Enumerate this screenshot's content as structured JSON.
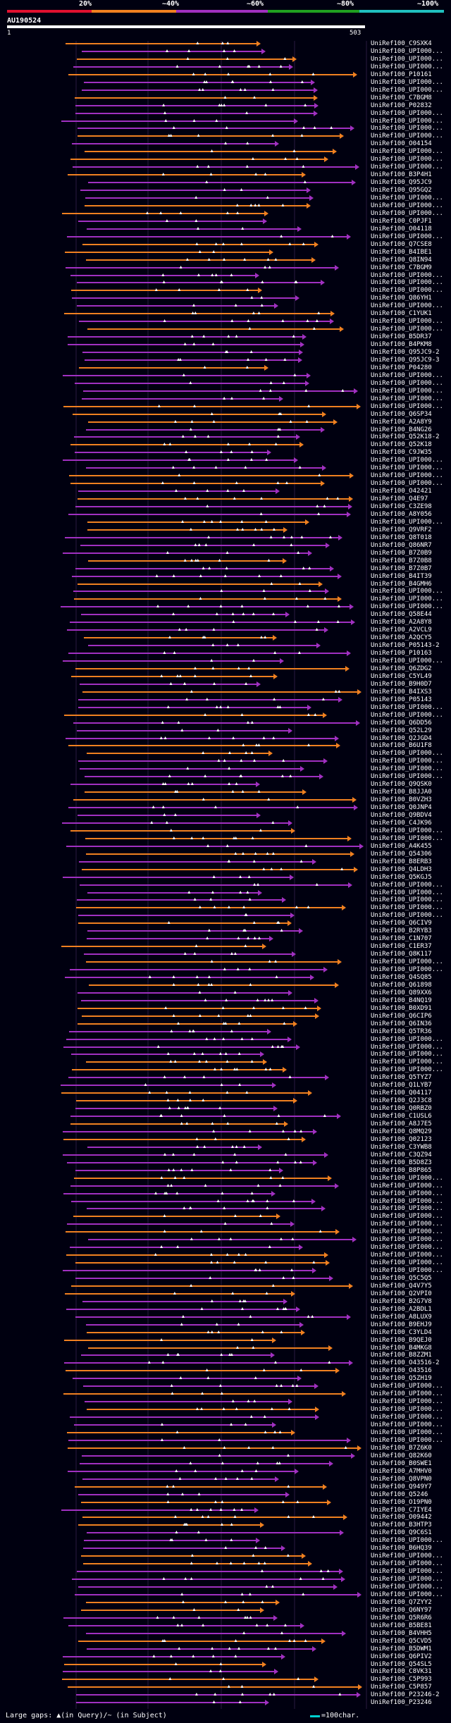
{
  "query": {
    "id": "AU190524",
    "start_label": "1",
    "end_label": "503"
  },
  "identity_scale": [
    {
      "label": "20%",
      "color": "#e0102f"
    },
    {
      "label": "~40%",
      "color": "#f08020"
    },
    {
      "label": "~60%",
      "color": "#a030c0"
    },
    {
      "label": "~80%",
      "color": "#20a020"
    },
    {
      "label": "~100%",
      "color": "#20c0c0"
    }
  ],
  "footer": {
    "gaps_note": "Large gaps: ▲(in Query)/~ (in Subject)",
    "legend": "=100char."
  },
  "hits": [
    "UniRef100_C9SXK4",
    "UniRef100_UPI000...",
    "UniRef100_UPI000...",
    "UniRef100_UPI000...",
    "UniRef100_P10161",
    "UniRef100_UPI000...",
    "UniRef100_UPI000...",
    "UniRef100_C7BGM8",
    "UniRef100_P02832",
    "UniRef100_UPI000...",
    "UniRef100_UPI000...",
    "UniRef100_UPI000...",
    "UniRef100_UPI000...",
    "UniRef100_O04154",
    "UniRef100_UPI000...",
    "UniRef100_UPI000...",
    "UniRef100_UPI000...",
    "UniRef100_B3P4H1",
    "UniRef100_Q95JC9",
    "UniRef100_Q95GQ2",
    "UniRef100_UPI000...",
    "UniRef100_UPI000...",
    "UniRef100_UPI000...",
    "UniRef100_C0PJF1",
    "UniRef100_O04118",
    "UniRef100_UPI000...",
    "UniRef100_Q7CSE8",
    "UniRef100_B4IBE1",
    "UniRef100_Q8IN94",
    "UniRef100_C7BGM9",
    "UniRef100_UPI000...",
    "UniRef100_UPI000...",
    "UniRef100_UPI000...",
    "UniRef100_Q86YH1",
    "UniRef100_UPI000...",
    "UniRef100_C1YUK1",
    "UniRef100_UPI000...",
    "UniRef100_UPI000...",
    "UniRef100_B5DR37",
    "UniRef100_B4PKM8",
    "UniRef100_Q95JC9-2",
    "UniRef100_Q95JC9-3",
    "UniRef100_P04280",
    "UniRef100_UPI000...",
    "UniRef100_UPI000...",
    "UniRef100_UPI000...",
    "UniRef100_UPI000...",
    "UniRef100_UPI000...",
    "UniRef100_Q6SP34",
    "UniRef100_A2A8Y9",
    "UniRef100_B4NG26",
    "UniRef100_Q52K18-2",
    "UniRef100_Q52K18",
    "UniRef100_C9JW35",
    "UniRef100_UPI000...",
    "UniRef100_UPI000...",
    "UniRef100_UPI000...",
    "UniRef100_UPI000...",
    "UniRef100_O42421",
    "UniRef100_Q4E97",
    "UniRef100_C3ZE98",
    "UniRef100_A8Y056",
    "UniRef100_UPI000...",
    "UniRef100_Q9VRF2",
    "UniRef100_Q8T018",
    "UniRef100_Q86NR7",
    "UniRef100_B7Z0B9",
    "UniRef100_B7Z0B8",
    "UniRef100_B7Z0B7",
    "UniRef100_B4IT39",
    "UniRef100_B4GMH6",
    "UniRef100_UPI000...",
    "UniRef100_UPI000...",
    "UniRef100_UPI000...",
    "UniRef100_Q58E44",
    "UniRef100_A2A8Y8",
    "UniRef100_A2VCL9",
    "UniRef100_A2QCY5",
    "UniRef100_P05143-2",
    "UniRef100_P10163",
    "UniRef100_UPI000...",
    "UniRef100_Q6ZDG2",
    "UniRef100_C5YL49",
    "UniRef100_B9H0D7",
    "UniRef100_B4IXS3",
    "UniRef100_P05143",
    "UniRef100_UPI000...",
    "UniRef100_UPI000...",
    "UniRef100_Q6DD56",
    "UniRef100_Q52L29",
    "UniRef100_Q2JGD4",
    "UniRef100_B6U1F8",
    "UniRef100_UPI000...",
    "UniRef100_UPI000...",
    "UniRef100_UPI000...",
    "UniRef100_UPI000...",
    "UniRef100_Q9QSK0",
    "UniRef100_B8JJA0",
    "UniRef100_B0VZH3",
    "UniRef100_Q0JNP4",
    "UniRef100_Q9BDV4",
    "UniRef100_C4JK96",
    "UniRef100_UPI000...",
    "UniRef100_UPI000...",
    "UniRef100_A4K455",
    "UniRef100_Q54306",
    "UniRef100_B8ERB3",
    "UniRef100_Q4LDH3",
    "UniRef100_Q5KGJ5",
    "UniRef100_UPI000...",
    "UniRef100_UPI000...",
    "UniRef100_UPI000...",
    "UniRef100_UPI000...",
    "UniRef100_UPI000...",
    "UniRef100_Q6CIV9",
    "UniRef100_B2RYB3",
    "UniRef100_C1N707",
    "UniRef100_C1ER37",
    "UniRef100_Q8K117",
    "UniRef100_UPI000...",
    "UniRef100_UPI000...",
    "UniRef100_Q4SQ85",
    "UniRef100_Q61898",
    "UniRef100_Q89XX6",
    "UniRef100_B4NQ19",
    "UniRef100_B0XD91",
    "UniRef100_Q6CIP6",
    "UniRef100_Q6IN36",
    "UniRef100_Q5TR36",
    "UniRef100_UPI000...",
    "UniRef100_UPI000...",
    "UniRef100_UPI000...",
    "UniRef100_UPI000...",
    "UniRef100_UPI000...",
    "UniRef100_Q5TYZ7",
    "UniRef100_Q1LYB7",
    "UniRef100_Q04117",
    "UniRef100_Q2J3C8",
    "UniRef100_Q0RBZ0",
    "UniRef100_C1USL6",
    "UniRef100_A8J7E5",
    "UniRef100_Q8MQ29",
    "UniRef100_Q02123",
    "UniRef100_C3YWB8",
    "UniRef100_C3QZ94",
    "UniRef100_B5D8Z3",
    "UniRef100_B8P865",
    "UniRef100_UPI000...",
    "UniRef100_UPI000...",
    "UniRef100_UPI000...",
    "UniRef100_UPI000...",
    "UniRef100_UPI000...",
    "UniRef100_UPI000...",
    "UniRef100_UPI000...",
    "UniRef100_UPI000...",
    "UniRef100_UPI000...",
    "UniRef100_UPI000...",
    "UniRef100_UPI000...",
    "UniRef100_UPI000...",
    "UniRef100_UPI000...",
    "UniRef100_Q5C5Q5",
    "UniRef100_Q4V7Y5",
    "UniRef100_Q2VPI0",
    "UniRef100_B2G7V8",
    "UniRef100_A2BDL1",
    "UniRef100_A8LUX9",
    "UniRef100_B9EHJ9",
    "UniRef100_C3YLD4",
    "UniRef100_B9QEJ0",
    "UniRef100_B4MKG8",
    "UniRef100_B8ZZM1",
    "UniRef100_O43516-2",
    "UniRef100_O43516",
    "UniRef100_Q5ZH19",
    "UniRef100_UPI000...",
    "UniRef100_UPI000...",
    "UniRef100_UPI000...",
    "UniRef100_UPI000...",
    "UniRef100_UPI000...",
    "UniRef100_UPI000...",
    "UniRef100_UPI000...",
    "UniRef100_UPI000...",
    "UniRef100_B7Z6K0",
    "UniRef100_Q82K60",
    "UniRef100_B0SWE1",
    "UniRef100_A7MHV0",
    "UniRef100_Q8VPN0",
    "UniRef100_Q949Y7",
    "UniRef100_Q5246",
    "UniRef100_O19PN0",
    "UniRef100_C7IYE4",
    "UniRef100_O09442",
    "UniRef100_B3HTP3",
    "UniRef100_Q9C6S1",
    "UniRef100_UPI000...",
    "UniRef100_B6HQ39",
    "UniRef100_UPI000...",
    "UniRef100_UPI000...",
    "UniRef100_UPI000...",
    "UniRef100_UPI000...",
    "UniRef100_UPI000...",
    "UniRef100_UPI000...",
    "UniRef100_Q7ZYY2",
    "UniRef100_Q6NY97",
    "UniRef100_Q5R6R6",
    "UniRef100_B5BE81",
    "UniRef100_B4VHH5",
    "UniRef100_Q5CVD5",
    "UniRef100_B5DWM1",
    "UniRef100_Q6PIV2",
    "UniRef100_Q54SL5",
    "UniRef100_C8VK31",
    "UniRef100_C5P993",
    "UniRef100_C5P857",
    "UniRef100_P23246-2",
    "UniRef100_P23246"
  ]
}
